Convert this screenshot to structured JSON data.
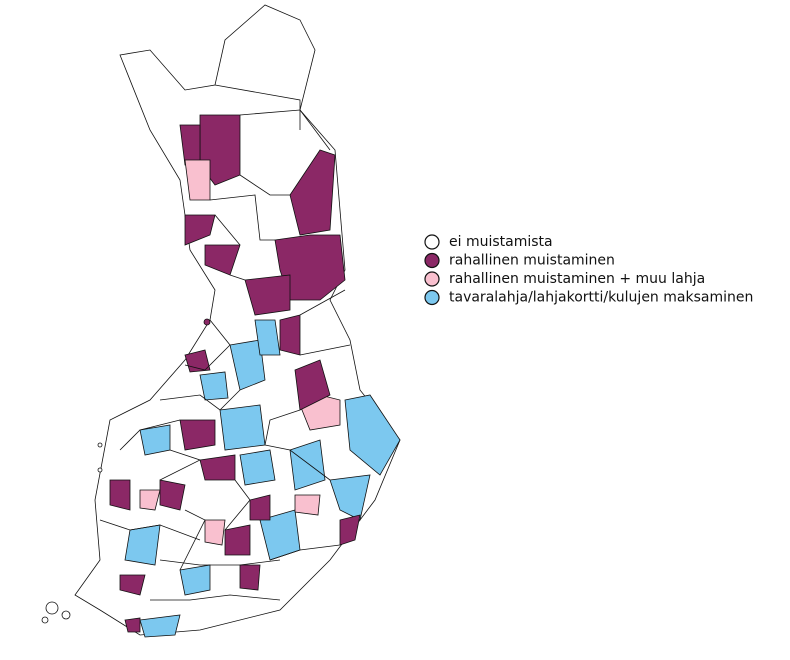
{
  "legend": {
    "items": [
      {
        "label": "ei muistamista",
        "color": "#ffffff"
      },
      {
        "label": "rahallinen muistaminen",
        "color": "#8b2866"
      },
      {
        "label": "rahallinen muistaminen + muu lahja",
        "color": "#f9c0cf"
      },
      {
        "label": "tavaralahja/lahjakortti/kulujen maksaminen",
        "color": "#7cc8ef"
      }
    ]
  }
}
